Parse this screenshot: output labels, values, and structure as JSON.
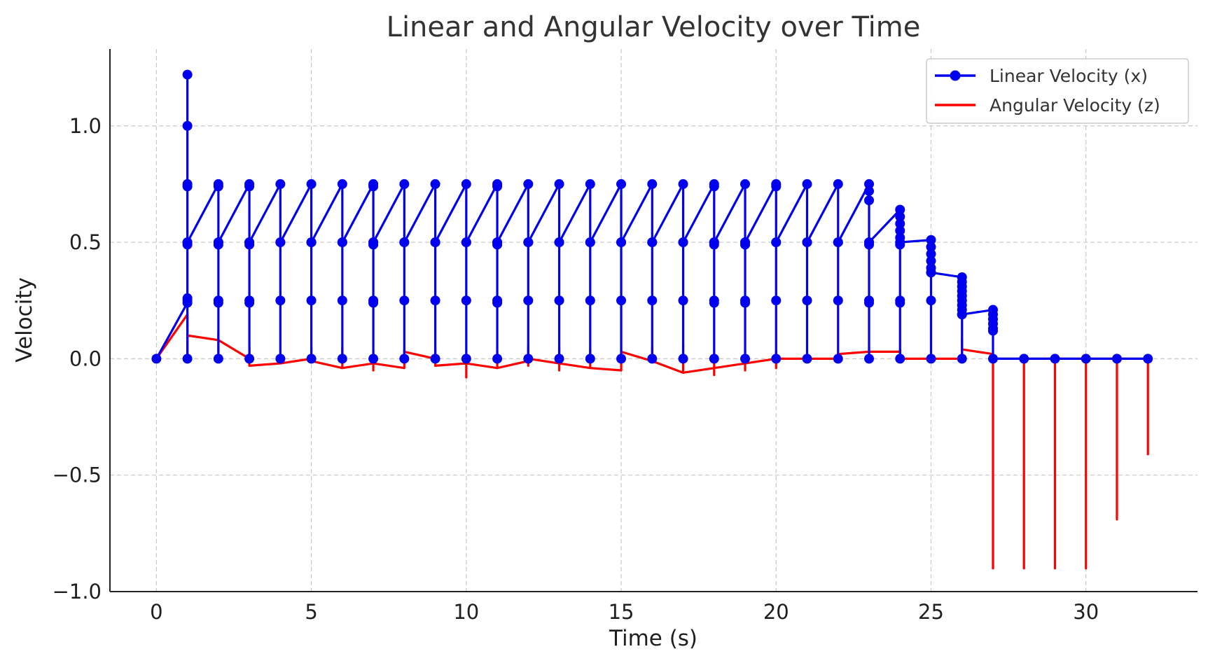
{
  "chart_data": {
    "type": "line",
    "title": "Linear and Angular Velocity over Time",
    "xlabel": "Time (s)",
    "ylabel": "Velocity",
    "xlim": [
      -1.5,
      33.6
    ],
    "ylim": [
      -1.0,
      1.33
    ],
    "xticks": [
      0,
      5,
      10,
      15,
      20,
      25,
      30
    ],
    "xtick_labels": [
      "0",
      "5",
      "10",
      "15",
      "20",
      "25",
      "30"
    ],
    "yticks": [
      -1.0,
      -0.5,
      0.0,
      0.5,
      1.0
    ],
    "ytick_labels": [
      "−1.0",
      "−0.5",
      "0.0",
      "0.5",
      "1.0"
    ],
    "grid": true,
    "legend_position": "top-right",
    "series": [
      {
        "name": "Linear Velocity (x)",
        "color": "#0000ee",
        "marker": "circle",
        "points": [
          [
            0,
            0
          ],
          [
            1,
            0.24
          ],
          [
            1,
            0.26
          ],
          [
            1,
            0.5
          ],
          [
            1,
            0.75
          ],
          [
            1,
            1.0
          ],
          [
            1,
            1.22
          ],
          [
            1,
            0.74
          ],
          [
            1,
            0.49
          ],
          [
            1,
            0.25
          ],
          [
            1,
            0
          ],
          [
            1,
            0.5
          ],
          [
            2,
            0.75
          ],
          [
            2,
            0.5
          ],
          [
            2,
            0.25
          ],
          [
            2,
            0
          ],
          [
            2,
            0.24
          ],
          [
            2,
            0.49
          ],
          [
            2,
            0.74
          ],
          [
            2,
            0.5
          ],
          [
            3,
            0.75
          ],
          [
            3,
            0.5
          ],
          [
            3,
            0.25
          ],
          [
            3,
            0
          ],
          [
            3,
            0.24
          ],
          [
            3,
            0.49
          ],
          [
            3,
            0.74
          ],
          [
            3,
            0.5
          ],
          [
            4,
            0.75
          ],
          [
            4,
            0.5
          ],
          [
            4,
            0.25
          ],
          [
            4,
            0
          ],
          [
            4,
            0.5
          ],
          [
            5,
            0.75
          ],
          [
            5,
            0.5
          ],
          [
            5,
            0.25
          ],
          [
            5,
            0
          ],
          [
            5,
            0.5
          ],
          [
            6,
            0.75
          ],
          [
            6,
            0.5
          ],
          [
            6,
            0.25
          ],
          [
            6,
            0
          ],
          [
            6,
            0.5
          ],
          [
            7,
            0.75
          ],
          [
            7,
            0.5
          ],
          [
            7,
            0.25
          ],
          [
            7,
            0
          ],
          [
            7,
            0.24
          ],
          [
            7,
            0.49
          ],
          [
            7,
            0.74
          ],
          [
            7,
            0.5
          ],
          [
            8,
            0.75
          ],
          [
            8,
            0.5
          ],
          [
            8,
            0.25
          ],
          [
            8,
            0
          ],
          [
            8,
            0.5
          ],
          [
            9,
            0.75
          ],
          [
            9,
            0.5
          ],
          [
            9,
            0.25
          ],
          [
            9,
            0
          ],
          [
            9,
            0.5
          ],
          [
            10,
            0.75
          ],
          [
            10,
            0.5
          ],
          [
            10,
            0.25
          ],
          [
            10,
            0
          ],
          [
            10,
            0.5
          ],
          [
            11,
            0.75
          ],
          [
            11,
            0.5
          ],
          [
            11,
            0.25
          ],
          [
            11,
            0
          ],
          [
            11,
            0.24
          ],
          [
            11,
            0.49
          ],
          [
            11,
            0.74
          ],
          [
            11,
            0.5
          ],
          [
            12,
            0.75
          ],
          [
            12,
            0.5
          ],
          [
            12,
            0.25
          ],
          [
            12,
            0
          ],
          [
            12,
            0.5
          ],
          [
            13,
            0.75
          ],
          [
            13,
            0.5
          ],
          [
            13,
            0.25
          ],
          [
            13,
            0
          ],
          [
            13,
            0.5
          ],
          [
            14,
            0.75
          ],
          [
            14,
            0.5
          ],
          [
            14,
            0.25
          ],
          [
            14,
            0
          ],
          [
            14,
            0.5
          ],
          [
            15,
            0.75
          ],
          [
            15,
            0.5
          ],
          [
            15,
            0.25
          ],
          [
            15,
            0
          ],
          [
            15,
            0.5
          ],
          [
            16,
            0.75
          ],
          [
            16,
            0.5
          ],
          [
            16,
            0.25
          ],
          [
            16,
            0
          ],
          [
            16,
            0.5
          ],
          [
            17,
            0.75
          ],
          [
            17,
            0.5
          ],
          [
            17,
            0.25
          ],
          [
            17,
            0
          ],
          [
            17,
            0.5
          ],
          [
            18,
            0.75
          ],
          [
            18,
            0.5
          ],
          [
            18,
            0.25
          ],
          [
            18,
            0
          ],
          [
            18,
            0.24
          ],
          [
            18,
            0.49
          ],
          [
            18,
            0.74
          ],
          [
            18,
            0.5
          ],
          [
            19,
            0.75
          ],
          [
            19,
            0.5
          ],
          [
            19,
            0.25
          ],
          [
            19,
            0
          ],
          [
            19,
            0.24
          ],
          [
            19,
            0.49
          ],
          [
            19,
            0.5
          ],
          [
            20,
            0.75
          ],
          [
            20,
            0.5
          ],
          [
            20,
            0.25
          ],
          [
            20,
            0
          ],
          [
            20,
            0.74
          ],
          [
            20,
            0.5
          ],
          [
            21,
            0.75
          ],
          [
            21,
            0.5
          ],
          [
            21,
            0.25
          ],
          [
            21,
            0
          ],
          [
            21,
            0.5
          ],
          [
            22,
            0.75
          ],
          [
            22,
            0.5
          ],
          [
            22,
            0.25
          ],
          [
            22,
            0
          ],
          [
            22,
            0.5
          ],
          [
            23,
            0.75
          ],
          [
            23,
            0.72
          ],
          [
            23,
            0.68
          ],
          [
            23,
            0.5
          ],
          [
            23,
            0.49
          ],
          [
            23,
            0.25
          ],
          [
            23,
            0.24
          ],
          [
            23,
            0
          ],
          [
            23,
            0.5
          ],
          [
            24,
            0.64
          ],
          [
            24,
            0.61
          ],
          [
            24,
            0.58
          ],
          [
            24,
            0.55
          ],
          [
            24,
            0.52
          ],
          [
            24,
            0.49
          ],
          [
            24,
            0.25
          ],
          [
            24,
            0.24
          ],
          [
            24,
            0
          ],
          [
            24,
            0.5
          ],
          [
            25,
            0.51
          ],
          [
            25,
            0.48
          ],
          [
            25,
            0.45
          ],
          [
            25,
            0.42
          ],
          [
            25,
            0.39
          ],
          [
            25,
            0.37
          ],
          [
            25,
            0.25
          ],
          [
            25,
            0
          ],
          [
            25,
            0.37
          ],
          [
            26,
            0.35
          ],
          [
            26,
            0.33
          ],
          [
            26,
            0.31
          ],
          [
            26,
            0.29
          ],
          [
            26,
            0.27
          ],
          [
            26,
            0.25
          ],
          [
            26,
            0.23
          ],
          [
            26,
            0.21
          ],
          [
            26,
            0.19
          ],
          [
            26,
            0
          ],
          [
            26,
            0.19
          ],
          [
            27,
            0.21
          ],
          [
            27,
            0.19
          ],
          [
            27,
            0.17
          ],
          [
            27,
            0.15
          ],
          [
            27,
            0.13
          ],
          [
            27,
            0.12
          ],
          [
            27,
            0
          ],
          [
            28,
            0
          ],
          [
            29,
            0
          ],
          [
            30,
            0
          ],
          [
            31,
            0
          ],
          [
            32,
            0
          ]
        ]
      },
      {
        "name": "Angular Velocity (z)",
        "color": "#ff0000",
        "marker": "none",
        "points": [
          [
            0,
            0
          ],
          [
            1,
            0.19
          ],
          [
            1,
            0.1
          ],
          [
            1,
            0
          ],
          [
            1,
            0.1
          ],
          [
            2,
            0.08
          ],
          [
            2,
            0.11
          ],
          [
            2,
            0
          ],
          [
            2,
            0.08
          ],
          [
            3,
            0
          ],
          [
            3,
            -0.03
          ],
          [
            3,
            0.05
          ],
          [
            3,
            -0.03
          ],
          [
            4,
            -0.02
          ],
          [
            4,
            0
          ],
          [
            4,
            -0.02
          ],
          [
            5,
            0
          ],
          [
            5,
            0.05
          ],
          [
            5,
            -0.01
          ],
          [
            6,
            -0.04
          ],
          [
            6,
            0.05
          ],
          [
            6,
            -0.04
          ],
          [
            7,
            -0.02
          ],
          [
            7,
            -0.05
          ],
          [
            7,
            0.03
          ],
          [
            7,
            -0.02
          ],
          [
            8,
            -0.04
          ],
          [
            8,
            0.04
          ],
          [
            8,
            0.03
          ],
          [
            9,
            0
          ],
          [
            9,
            -0.03
          ],
          [
            9,
            0.05
          ],
          [
            9,
            -0.03
          ],
          [
            10,
            -0.02
          ],
          [
            10,
            -0.08
          ],
          [
            10,
            0
          ],
          [
            10,
            -0.02
          ],
          [
            11,
            -0.04
          ],
          [
            11,
            0.03
          ],
          [
            11,
            -0.04
          ],
          [
            12,
            -0.01
          ],
          [
            12,
            -0.03
          ],
          [
            12,
            0.05
          ],
          [
            12,
            0
          ],
          [
            13,
            -0.02
          ],
          [
            13,
            -0.05
          ],
          [
            13,
            0.05
          ],
          [
            13,
            -0.02
          ],
          [
            14,
            -0.04
          ],
          [
            14,
            0.04
          ],
          [
            14,
            -0.04
          ],
          [
            15,
            -0.05
          ],
          [
            15,
            0.04
          ],
          [
            15,
            0.03
          ],
          [
            16,
            -0.01
          ],
          [
            16,
            0.05
          ],
          [
            16,
            -0.01
          ],
          [
            17,
            -0.06
          ],
          [
            17,
            0.06
          ],
          [
            17,
            -0.06
          ],
          [
            18,
            -0.04
          ],
          [
            18,
            -0.07
          ],
          [
            18,
            0.02
          ],
          [
            18,
            -0.04
          ],
          [
            19,
            -0.02
          ],
          [
            19,
            -0.05
          ],
          [
            19,
            0.03
          ],
          [
            19,
            -0.02
          ],
          [
            20,
            0
          ],
          [
            20,
            -0.04
          ],
          [
            20,
            0.03
          ],
          [
            20,
            0
          ],
          [
            21,
            0
          ],
          [
            21,
            0.01
          ],
          [
            21,
            0
          ],
          [
            22,
            0
          ],
          [
            22,
            0.01
          ],
          [
            22,
            0.02
          ],
          [
            23,
            0.03
          ],
          [
            23,
            0.05
          ],
          [
            23,
            0.03
          ],
          [
            24,
            0.03
          ],
          [
            24,
            0
          ],
          [
            24,
            0.04
          ],
          [
            24,
            0
          ],
          [
            25,
            0
          ],
          [
            25,
            0.01
          ],
          [
            25,
            0
          ],
          [
            26,
            0
          ],
          [
            26,
            0.08
          ],
          [
            26,
            0
          ],
          [
            26,
            0.04
          ],
          [
            27,
            0.02
          ],
          [
            27,
            -0.9
          ],
          [
            27,
            0
          ],
          [
            28,
            0
          ],
          [
            28,
            -0.9
          ],
          [
            28,
            0
          ],
          [
            29,
            0
          ],
          [
            29,
            -0.9
          ],
          [
            29,
            0
          ],
          [
            30,
            0
          ],
          [
            30,
            -0.9
          ],
          [
            30,
            -0.74
          ],
          [
            30,
            0
          ],
          [
            31,
            0
          ],
          [
            31,
            -0.69
          ],
          [
            31,
            -0.44
          ],
          [
            31,
            0
          ],
          [
            32,
            0
          ],
          [
            32,
            -0.41
          ],
          [
            32,
            0
          ]
        ]
      }
    ]
  }
}
